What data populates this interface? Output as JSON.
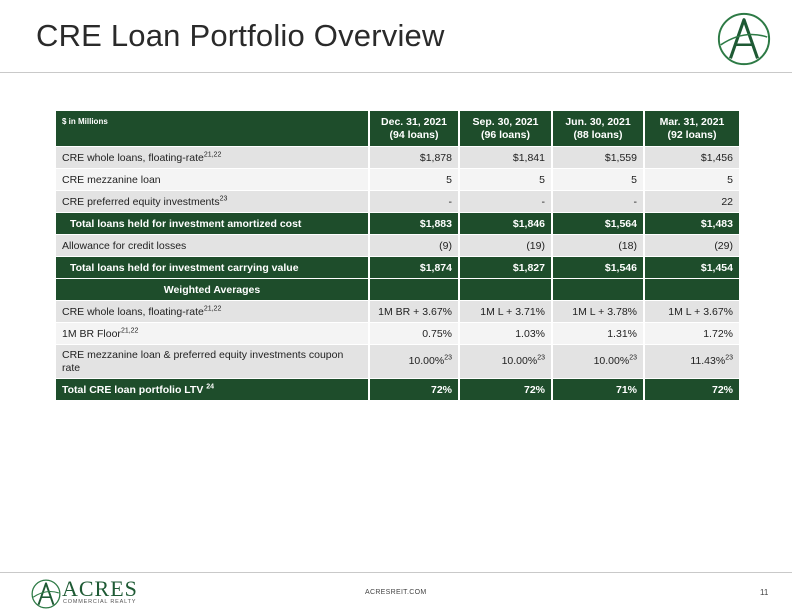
{
  "title": "CRE Loan Portfolio Overview",
  "colors": {
    "primary_green": "#1e4d2b",
    "row_shade": "#e3e3e3",
    "logo_green": "#1e5a34"
  },
  "table": {
    "unit_label": "$ in Millions",
    "columns": [
      {
        "period": "Dec. 31, 2021",
        "loans": "(94 loans)"
      },
      {
        "period": "Sep. 30, 2021",
        "loans": "(96 loans)"
      },
      {
        "period": "Jun. 30, 2021",
        "loans": "(88 loans)"
      },
      {
        "period": "Mar. 31, 2021",
        "loans": "(92 loans)"
      }
    ],
    "rows": {
      "cre_whole": {
        "label": "CRE whole loans, floating-rate",
        "sup": "21,22",
        "values": [
          "$1,878",
          "$1,841",
          "$1,559",
          "$1,456"
        ]
      },
      "cre_mezz": {
        "label": "CRE mezzanine loan",
        "values": [
          "5",
          "5",
          "5",
          "5"
        ]
      },
      "cre_pref": {
        "label": "CRE preferred equity investments",
        "sup": "23",
        "values": [
          "-",
          "-",
          "-",
          "22"
        ]
      },
      "total_amortized": {
        "label": "Total loans held for investment amortized cost",
        "values": [
          "$1,883",
          "$1,846",
          "$1,564",
          "$1,483"
        ]
      },
      "allowance": {
        "label": "Allowance for credit losses",
        "values": [
          "(9)",
          "(19)",
          "(18)",
          "(29)"
        ]
      },
      "total_carrying": {
        "label": "Total loans held for investment carrying value",
        "values": [
          "$1,874",
          "$1,827",
          "$1,546",
          "$1,454"
        ]
      },
      "weighted_header": {
        "label": "Weighted Averages"
      },
      "wa_cre_whole": {
        "label": "CRE whole loans, floating-rate",
        "sup": "21,22",
        "values": [
          "1M BR + 3.67%",
          "1M L + 3.71%",
          "1M L + 3.78%",
          "1M L + 3.67%"
        ]
      },
      "wa_floor": {
        "label": "1M BR Floor",
        "sup": "21,22",
        "values": [
          "0.75%",
          "1.03%",
          "1.31%",
          "1.72%"
        ]
      },
      "wa_coupon": {
        "label": "CRE mezzanine loan & preferred equity investments coupon rate",
        "values": [
          "10.00%",
          "10.00%",
          "10.00%",
          "11.43%"
        ],
        "sups": [
          "23",
          "23",
          "23",
          "23"
        ]
      },
      "ltv": {
        "label": "Total CRE loan portfolio LTV",
        "sup": "24",
        "values": [
          "72%",
          "72%",
          "71%",
          "72%"
        ]
      }
    }
  },
  "footer": {
    "brand": "ACRES",
    "brand_sub": "COMMERCIAL REALTY",
    "website": "ACRESREIT.COM",
    "page_number": "11"
  },
  "icons": {
    "logo": "acres-a-logo-icon"
  }
}
